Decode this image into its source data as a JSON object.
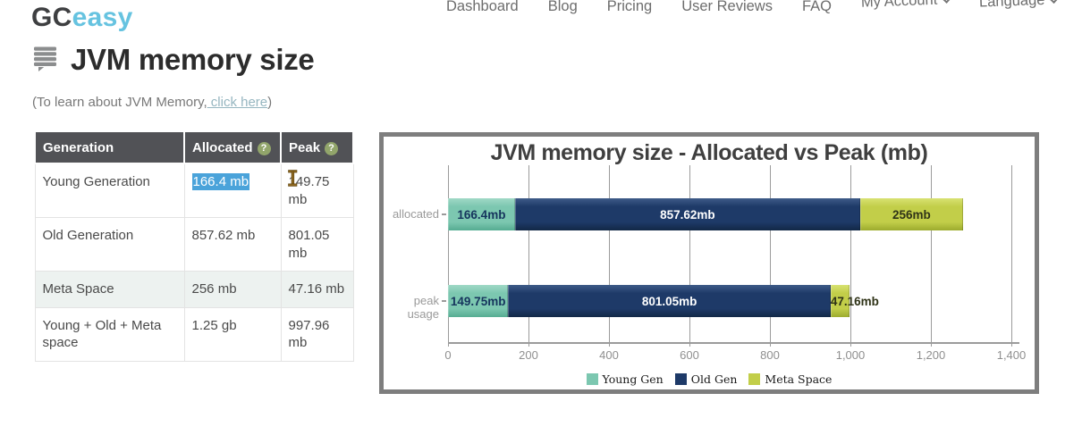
{
  "brand": {
    "gc": "GC",
    "easy": "easy"
  },
  "nav": {
    "items": [
      {
        "label": "Dashboard",
        "has_chevron": false
      },
      {
        "label": "Blog",
        "has_chevron": false
      },
      {
        "label": "Pricing",
        "has_chevron": false
      },
      {
        "label": "User Reviews",
        "has_chevron": false
      },
      {
        "label": "FAQ",
        "has_chevron": false
      },
      {
        "label": "My Account",
        "has_chevron": true
      },
      {
        "label": "Language",
        "has_chevron": true
      }
    ]
  },
  "page": {
    "title": "JVM memory size",
    "subtitle_prefix": "(To learn about JVM Memory,",
    "subtitle_link": " click here",
    "subtitle_suffix": ")"
  },
  "table": {
    "help_glyph": "?",
    "headers": [
      {
        "label": "Generation",
        "help": false
      },
      {
        "label": "Allocated",
        "help": true
      },
      {
        "label": "Peak",
        "help": true
      }
    ],
    "rows": [
      {
        "generation": "Young Generation",
        "allocated": "166.4 mb",
        "peak": "149.75 mb"
      },
      {
        "generation": "Old Generation",
        "allocated": "857.62 mb",
        "peak": "801.05 mb"
      },
      {
        "generation": "Meta Space",
        "allocated": "256 mb",
        "peak": "47.16 mb"
      },
      {
        "generation": "Young + Old + Meta space",
        "allocated": "1.25 gb",
        "peak": "997.96 mb"
      }
    ]
  },
  "chart_data": {
    "type": "bar",
    "orientation": "horizontal",
    "stacked": true,
    "title": "JVM memory size - Allocated vs Peak (mb)",
    "categories": [
      "allocated",
      "peak usage"
    ],
    "series": [
      {
        "name": "Young Gen",
        "color": "#7cc7b0",
        "light": "#a0d9c6",
        "dark": "#55ab91",
        "label_color": "#16355d",
        "values": [
          166.4,
          149.75
        ],
        "labels": [
          "166.4mb",
          "149.75mb"
        ]
      },
      {
        "name": "Old Gen",
        "color": "#1e3a68",
        "light": "#3e5b88",
        "dark": "#122846",
        "label_color": "#ffffff",
        "values": [
          857.62,
          801.05
        ],
        "labels": [
          "857.62mb",
          "801.05mb"
        ]
      },
      {
        "name": "Meta Space",
        "color": "#c2ce49",
        "light": "#d8e272",
        "dark": "#9cab2d",
        "label_color": "#2f3317",
        "values": [
          256,
          47.16
        ],
        "labels": [
          "256mb",
          "47.16mb"
        ]
      }
    ],
    "xlim": [
      0,
      1400
    ],
    "x_tick_values": [
      0,
      200,
      400,
      600,
      800,
      1000,
      1200,
      1400
    ],
    "x_ticks": [
      "0",
      "200",
      "400",
      "600",
      "800",
      "1,000",
      "1,200",
      "1,400"
    ],
    "grid": true,
    "legend_position": "bottom"
  }
}
